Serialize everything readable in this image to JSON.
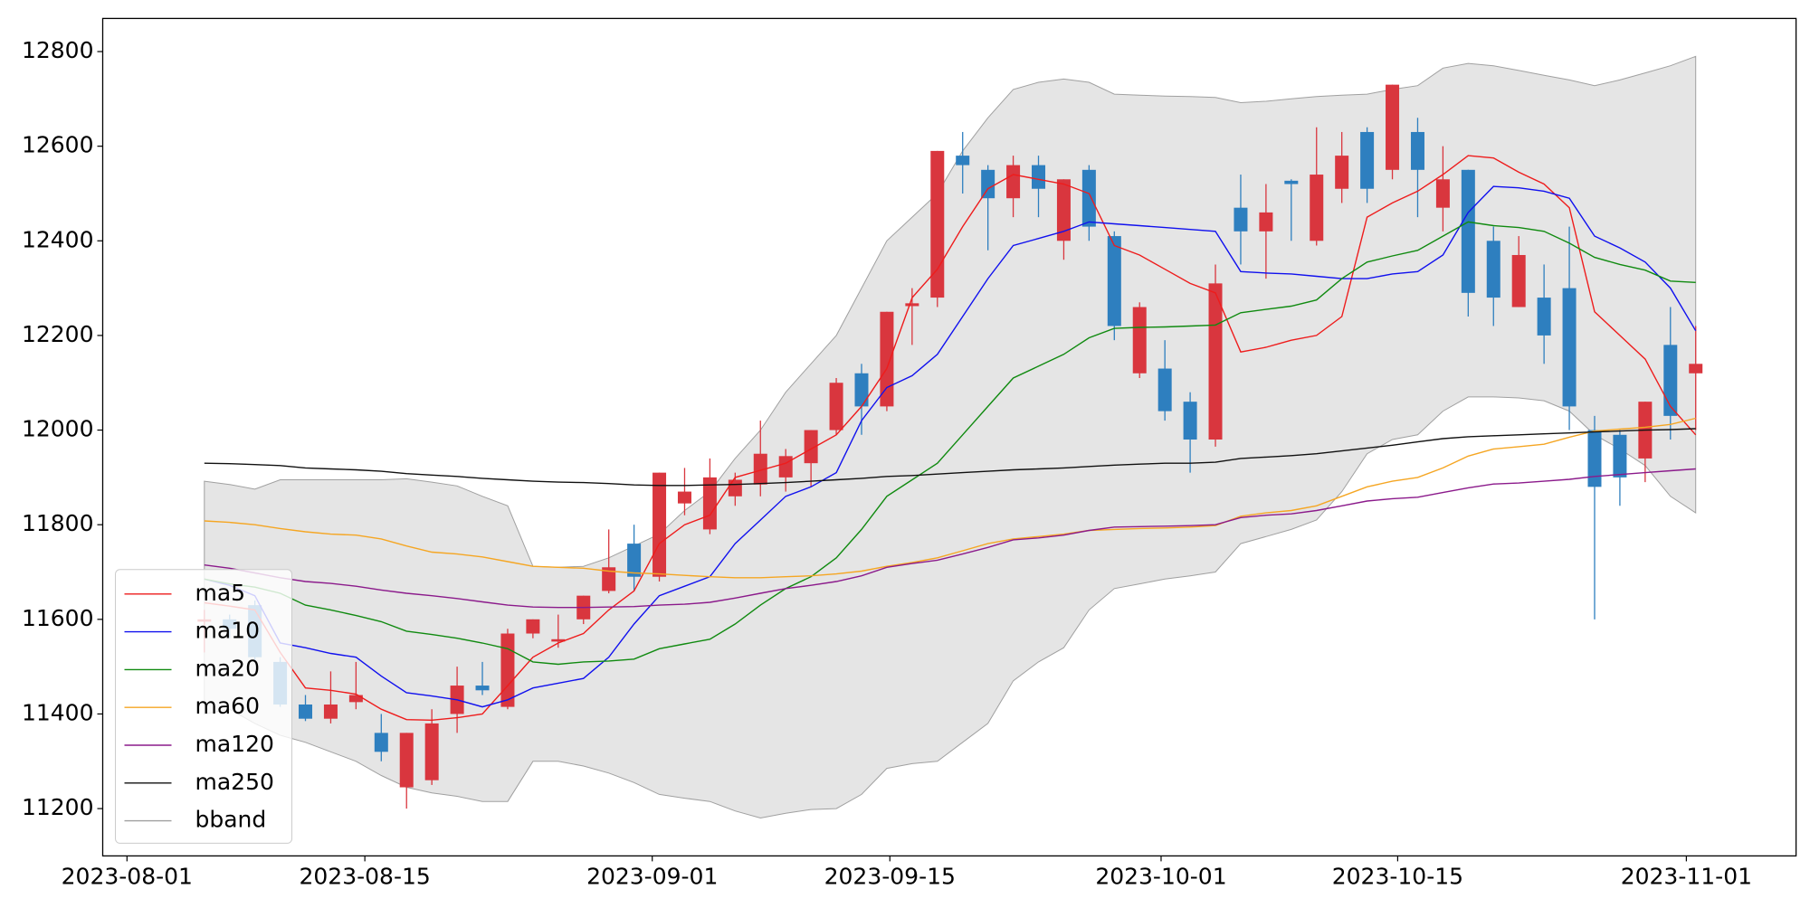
{
  "chart_data": {
    "type": "candlestick",
    "xlim": [
      -4.02,
      62.97
    ],
    "ylim": [
      11100,
      12870
    ],
    "xticks": [
      {
        "value": -3.06,
        "label": "2023-08-01"
      },
      {
        "value": 6.35,
        "label": "2023-08-15"
      },
      {
        "value": 17.72,
        "label": "2023-09-01"
      },
      {
        "value": 27.12,
        "label": "2023-09-15"
      },
      {
        "value": 37.85,
        "label": "2023-10-01"
      },
      {
        "value": 47.21,
        "label": "2023-10-15"
      },
      {
        "value": 58.63,
        "label": "2023-11-01"
      }
    ],
    "yticks": [
      11200,
      11400,
      11600,
      11800,
      12000,
      12200,
      12400,
      12600,
      12800
    ],
    "up_color": "#d9363e",
    "down_color": "#2e7fbf",
    "legend": "lower left",
    "candles": {
      "open": [
        11595,
        11600,
        11630,
        11510,
        11420,
        11390,
        11425,
        11360,
        11245,
        11260,
        11400,
        11460,
        11415,
        11570,
        11553,
        11600,
        11660,
        11760,
        11690,
        11845,
        11790,
        11860,
        11885,
        11900,
        11930,
        12000,
        12120,
        12050,
        12262,
        12280,
        12580,
        12550,
        12490,
        12560,
        12400,
        12550,
        12410,
        12120,
        12130,
        12060,
        11980,
        12470,
        12420,
        12527,
        12400,
        12510,
        12630,
        12550,
        12630,
        12470,
        12550,
        12400,
        12260,
        12280,
        12300,
        12000,
        11990,
        11940,
        12180,
        12120
      ],
      "high": [
        11620,
        11610,
        11640,
        11520,
        11440,
        11490,
        11510,
        11400,
        11360,
        11410,
        11500,
        11510,
        11580,
        11600,
        11610,
        11650,
        11790,
        11800,
        11910,
        11920,
        11940,
        11910,
        12020,
        11960,
        12000,
        12110,
        12140,
        12250,
        12300,
        12590,
        12630,
        12560,
        12580,
        12580,
        12530,
        12560,
        12420,
        12270,
        12190,
        12080,
        12350,
        12540,
        12520,
        12530,
        12640,
        12630,
        12640,
        12730,
        12660,
        12600,
        12550,
        12430,
        12410,
        12350,
        12430,
        12030,
        12000,
        12060,
        12260,
        12220
      ],
      "low": [
        11530,
        11560,
        11510,
        11415,
        11385,
        11380,
        11410,
        11300,
        11200,
        11250,
        11360,
        11440,
        11410,
        11560,
        11540,
        11590,
        11655,
        11660,
        11680,
        11820,
        11780,
        11840,
        11860,
        11870,
        11880,
        11990,
        11990,
        12040,
        12180,
        12260,
        12500,
        12380,
        12450,
        12450,
        12360,
        12400,
        12190,
        12110,
        12020,
        11910,
        11965,
        12350,
        12320,
        12400,
        12390,
        12480,
        12480,
        12530,
        12450,
        12420,
        12240,
        12220,
        12260,
        12140,
        12000,
        11600,
        11840,
        11890,
        11980,
        12000
      ],
      "close": [
        11600,
        11580,
        11520,
        11420,
        11390,
        11420,
        11440,
        11320,
        11360,
        11380,
        11460,
        11450,
        11570,
        11600,
        11558,
        11650,
        11710,
        11690,
        11910,
        11870,
        11900,
        11895,
        11950,
        11945,
        12000,
        12100,
        12050,
        12250,
        12268,
        12590,
        12560,
        12490,
        12560,
        12510,
        12530,
        12430,
        12220,
        12260,
        12040,
        11980,
        12310,
        12420,
        12460,
        12520,
        12540,
        12580,
        12510,
        12730,
        12550,
        12530,
        12290,
        12280,
        12370,
        12200,
        12050,
        11880,
        11900,
        12060,
        12030,
        12140
      ]
    },
    "series": [
      {
        "name": "ma5",
        "color": "#ee1c1c",
        "values": [
          11635,
          11628,
          11620,
          11530,
          11455,
          11450,
          11442,
          11410,
          11388,
          11387,
          11392,
          11400,
          11460,
          11520,
          11550,
          11570,
          11620,
          11660,
          11760,
          11800,
          11820,
          11900,
          11915,
          11930,
          11960,
          11990,
          12050,
          12130,
          12280,
          12340,
          12430,
          12510,
          12540,
          12530,
          12520,
          12500,
          12390,
          12370,
          12340,
          12310,
          12290,
          12165,
          12175,
          12190,
          12200,
          12240,
          12450,
          12480,
          12505,
          12540,
          12580,
          12575,
          12545,
          12520,
          12470,
          12250,
          12200,
          12150,
          12050,
          11990
        ]
      },
      {
        "name": "ma10",
        "color": "#1010ee",
        "values": [
          11685,
          11672,
          11650,
          11550,
          11540,
          11528,
          11520,
          11480,
          11445,
          11438,
          11430,
          11415,
          11430,
          11455,
          11465,
          11475,
          11520,
          11590,
          11650,
          11670,
          11690,
          11760,
          11810,
          11860,
          11880,
          11910,
          12020,
          12090,
          12115,
          12160,
          12240,
          12320,
          12390,
          12405,
          12420,
          12440,
          12436,
          12432,
          12428,
          12424,
          12420,
          12335,
          12332,
          12330,
          12325,
          12320,
          12320,
          12330,
          12335,
          12370,
          12460,
          12515,
          12512,
          12505,
          12490,
          12410,
          12385,
          12355,
          12300,
          12210
        ]
      },
      {
        "name": "ma20",
        "color": "#108a10",
        "values": [
          11685,
          11675,
          11668,
          11655,
          11630,
          11620,
          11608,
          11595,
          11575,
          11568,
          11560,
          11550,
          11538,
          11510,
          11505,
          11510,
          11512,
          11516,
          11538,
          11548,
          11558,
          11590,
          11630,
          11665,
          11690,
          11730,
          11790,
          11860,
          11895,
          11930,
          11990,
          12050,
          12110,
          12135,
          12160,
          12195,
          12215,
          12217,
          12218,
          12220,
          12222,
          12248,
          12255,
          12262,
          12275,
          12320,
          12355,
          12368,
          12380,
          12410,
          12440,
          12432,
          12428,
          12420,
          12395,
          12365,
          12350,
          12338,
          12315,
          12312
        ]
      },
      {
        "name": "ma60",
        "color": "#f5a623",
        "values": [
          11808,
          11805,
          11800,
          11792,
          11785,
          11780,
          11778,
          11770,
          11755,
          11742,
          11738,
          11732,
          11722,
          11712,
          11710,
          11708,
          11702,
          11698,
          11696,
          11693,
          11690,
          11688,
          11688,
          11690,
          11692,
          11696,
          11702,
          11712,
          11720,
          11730,
          11745,
          11760,
          11770,
          11775,
          11780,
          11788,
          11790,
          11792,
          11793,
          11795,
          11798,
          11818,
          11825,
          11830,
          11840,
          11860,
          11880,
          11892,
          11900,
          11920,
          11945,
          11960,
          11965,
          11970,
          11985,
          11998,
          12002,
          12006,
          12012,
          12025
        ]
      },
      {
        "name": "ma120",
        "color": "#8b1a8b",
        "values": [
          11715,
          11708,
          11698,
          11688,
          11680,
          11676,
          11670,
          11662,
          11655,
          11650,
          11644,
          11637,
          11630,
          11626,
          11625,
          11625,
          11626,
          11627,
          11630,
          11632,
          11636,
          11645,
          11655,
          11665,
          11672,
          11680,
          11692,
          11710,
          11718,
          11725,
          11738,
          11752,
          11768,
          11772,
          11778,
          11788,
          11795,
          11796,
          11797,
          11798,
          11800,
          11815,
          11820,
          11823,
          11830,
          11840,
          11850,
          11855,
          11858,
          11868,
          11878,
          11886,
          11888,
          11892,
          11896,
          11902,
          11906,
          11910,
          11914,
          11918
        ]
      },
      {
        "name": "ma250",
        "color": "#111111",
        "values": [
          11930,
          11929,
          11927,
          11925,
          11920,
          11918,
          11916,
          11913,
          11908,
          11905,
          11902,
          11898,
          11895,
          11892,
          11890,
          11889,
          11887,
          11884,
          11883,
          11883,
          11884,
          11885,
          11887,
          11889,
          11892,
          11895,
          11898,
          11902,
          11904,
          11907,
          11910,
          11913,
          11916,
          11918,
          11920,
          11923,
          11926,
          11928,
          11930,
          11930,
          11932,
          11940,
          11943,
          11946,
          11950,
          11956,
          11962,
          11968,
          11975,
          11982,
          11986,
          11988,
          11990,
          11992,
          11994,
          11996,
          11998,
          12000,
          12001,
          12003
        ]
      }
    ],
    "band": {
      "name": "bband",
      "color": "#e5e5e5",
      "edge": "#a0a0a0",
      "upper": [
        11892,
        11885,
        11875,
        11895,
        11895,
        11895,
        11895,
        11895,
        11897,
        11890,
        11882,
        11860,
        11840,
        11712,
        11710,
        11712,
        11730,
        11755,
        11780,
        11830,
        11870,
        11940,
        12000,
        12080,
        12140,
        12200,
        12300,
        12400,
        12450,
        12500,
        12590,
        12660,
        12720,
        12735,
        12742,
        12735,
        12710,
        12708,
        12706,
        12705,
        12703,
        12692,
        12695,
        12700,
        12705,
        12708,
        12710,
        12720,
        12728,
        12765,
        12775,
        12770,
        12760,
        12750,
        12740,
        12728,
        12740,
        12755,
        12770,
        12790
      ],
      "lower": [
        11400,
        11410,
        11380,
        11355,
        11340,
        11320,
        11300,
        11270,
        11245,
        11233,
        11226,
        11215,
        11215,
        11300,
        11300,
        11290,
        11275,
        11255,
        11230,
        11222,
        11215,
        11195,
        11180,
        11190,
        11198,
        11200,
        11230,
        11285,
        11295,
        11300,
        11340,
        11380,
        11470,
        11510,
        11540,
        11620,
        11665,
        11675,
        11685,
        11692,
        11700,
        11760,
        11775,
        11790,
        11810,
        11870,
        11950,
        11980,
        11990,
        12040,
        12070,
        12070,
        12068,
        12062,
        12040,
        11990,
        11960,
        11925,
        11860,
        11825
      ]
    }
  }
}
